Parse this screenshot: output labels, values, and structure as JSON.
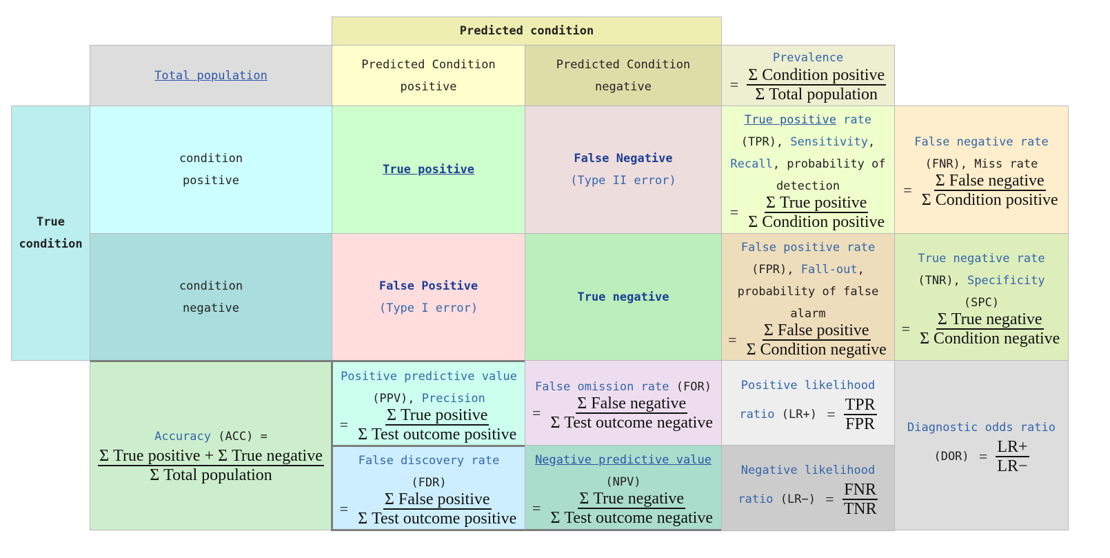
{
  "header": {
    "predicted_condition": "Predicted condition"
  },
  "total_population": "Total population",
  "pred_pos_header": [
    "Predicted Condition",
    "positive"
  ],
  "pred_neg_header": [
    "Predicted Condition",
    "negative"
  ],
  "prevalence": {
    "label": "Prevalence",
    "eq": "=",
    "num": "Σ Condition positive",
    "den": "Σ Total population"
  },
  "true_condition": [
    "True",
    "condition"
  ],
  "cond_pos": [
    "condition",
    "positive"
  ],
  "cond_neg": [
    "condition",
    "negative"
  ],
  "tp": "True positive",
  "fn": {
    "title": "False Negative",
    "sub": "(Type II error)"
  },
  "fp": {
    "title": "False Positive",
    "sub": "(Type I error)"
  },
  "tn": "True negative",
  "tpr": {
    "link": "True positive",
    "rate": " rate",
    "abbr": "(TPR), ",
    "sens": "Sensitivity",
    "comma1": ",",
    "recall": "Recall",
    "rest": ", probability of",
    "detection": "detection",
    "eq": "=",
    "num": "Σ True positive",
    "den": "Σ Condition positive"
  },
  "fnr": {
    "label": "False negative rate",
    "abbr": "(FNR), ",
    "miss": "Miss  rate",
    "eq": "=",
    "num": "Σ False negative",
    "den": "Σ Condition positive"
  },
  "fpr": {
    "label": "False positive rate",
    "abbr": "(FPR), ",
    "fallout": "Fall-out",
    "comma": ",",
    "line3": "probability of false",
    "line4": "alarm",
    "eq": "=",
    "num": "Σ False positive",
    "den": "Σ Condition negative"
  },
  "tnr": {
    "label": "True negative rate",
    "abbr": "(TNR), ",
    "spec": "Specificity",
    "spc": "(SPC)",
    "eq": "=",
    "num": "Σ True negative",
    "den": "Σ Condition negative"
  },
  "acc": {
    "label": "Accuracy",
    "abbr": " (ACC) =",
    "num": "Σ True positive + Σ True negative",
    "den": "Σ Total population"
  },
  "ppv": {
    "label": "Positive predictive value",
    "abbr": "(PPV), ",
    "prec": "Precision",
    "eq": "=",
    "num": "Σ True positive",
    "den": "Σ Test outcome positive"
  },
  "for": {
    "label": "False omission rate",
    "abbr": " (FOR)",
    "eq": "=",
    "num": "Σ False negative",
    "den": "Σ Test outcome negative"
  },
  "lrp": {
    "line1": "Positive likelihood",
    "ratio": "ratio",
    "abbr": " (LR+) ",
    "eq": "=",
    "num": "TPR",
    "den": "FPR"
  },
  "dor": {
    "label": "Diagnostic odds ratio",
    "abbr": "(DOR) ",
    "eq": "=",
    "num": "LR+",
    "den": "LR−"
  },
  "fdr": {
    "label": "False discovery rate",
    "abbr": "(FDR)",
    "eq": "=",
    "num": "Σ False positive",
    "den": "Σ Test outcome positive"
  },
  "npv": {
    "label": "Negative predictive value",
    "abbr": "(NPV)",
    "eq": "=",
    "num": "Σ True negative",
    "den": "Σ Test outcome negative"
  },
  "lrn": {
    "line1": "Negative likelihood",
    "ratio": "ratio",
    "abbr": " (LR−) ",
    "eq": "=",
    "num": "FNR",
    "den": "TNR"
  },
  "colors": {
    "header": "#eeeeb0",
    "total": "#dddddd",
    "pred_pos": "#ffffcc",
    "pred_neg": "#dddda8",
    "prevalence": "#eeeed0",
    "true_cond": "#bbeeee",
    "cond_pos": "#ccffff",
    "cond_neg": "#aadddd",
    "tp": "#ccffcc",
    "fn": "#eedddd",
    "fp": "#ffdddd",
    "tn": "#bbeebb",
    "tpr": "#eeffcc",
    "fnr": "#ffeecc",
    "fpr": "#eeddbb",
    "tnr": "#ddeebb",
    "acc": "#cceecc",
    "ppv": "#ccffee",
    "for": "#eeddee",
    "lrp": "#eeeeee",
    "dor": "#dddddd",
    "fdr": "#cceeff",
    "npv": "#aaddcc",
    "lrn": "#cccccc"
  }
}
